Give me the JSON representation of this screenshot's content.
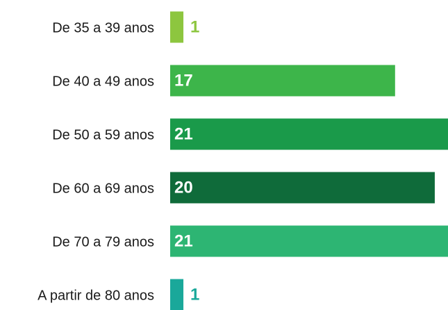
{
  "chart_data": {
    "type": "bar",
    "orientation": "horizontal",
    "categories": [
      "De 35 a 39 anos",
      "De 40 a 49 anos",
      "De 50 a 59 anos",
      "De 60 a 69 anos",
      "De 70 a 79 anos",
      "A partir de 80 anos"
    ],
    "values": [
      1,
      17,
      21,
      20,
      21,
      1
    ],
    "colors": [
      "#8dc63f",
      "#3db54a",
      "#1a9a4a",
      "#0f6b3a",
      "#2db573",
      "#1aa89a"
    ]
  }
}
